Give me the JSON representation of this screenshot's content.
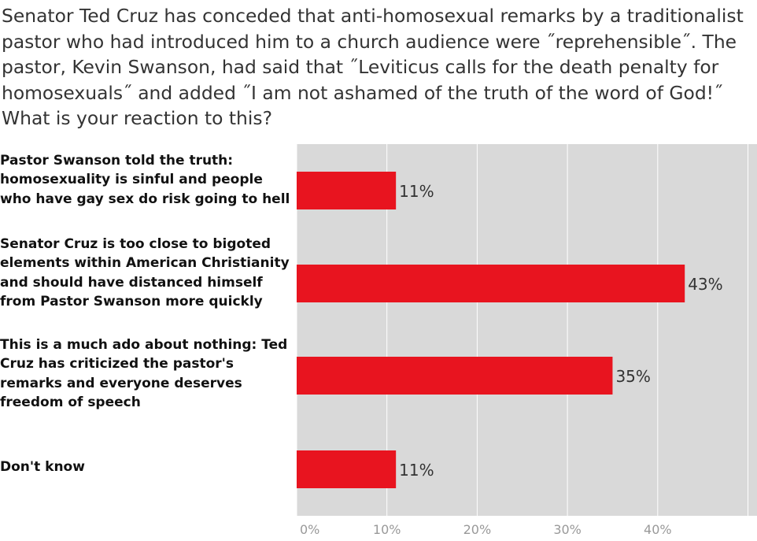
{
  "question": "Senator Ted Cruz has conceded that anti-homosexual remarks by a traditionalist pastor who had introduced him to a church audience were ˝reprehensible˝. The pastor, Kevin Swanson, had said that ˝Leviticus calls for the death penalty for homosexuals˝ and added ˝I am not ashamed of the truth of the word of God!˝ What is your reaction to this?",
  "colors": {
    "bar": "#e8141f",
    "plot_bg": "#d9d9d9",
    "grid": "#ffffff",
    "text": "#333333",
    "tick": "#999999"
  },
  "chart_data": {
    "type": "bar",
    "orientation": "horizontal",
    "categories": [
      "Pastor Swanson told the truth: homosexuality is sinful and people who have gay sex do risk going to hell",
      "Senator Cruz is too close to bigoted elements within American Christianity and should have distanced himself from Pastor Swanson more quickly",
      "This is a much ado about nothing: Ted Cruz has criticized the pastor's remarks and everyone deserves freedom of speech",
      "Don't know"
    ],
    "values": [
      11,
      43,
      35,
      11
    ],
    "data_labels": [
      "11%",
      "43%",
      "35%",
      "11%"
    ],
    "xticks": [
      "0%",
      "10%",
      "20%",
      "30%",
      "40%"
    ],
    "xlim": [
      0,
      51
    ],
    "grid": true,
    "legend": "none"
  }
}
